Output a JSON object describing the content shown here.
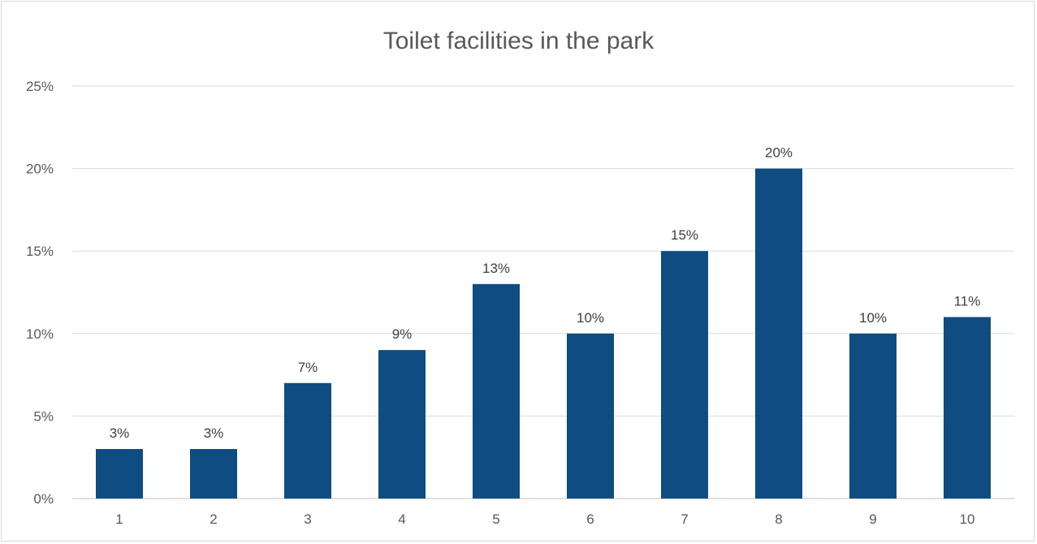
{
  "chart_data": {
    "type": "bar",
    "title": "Toilet facilities in the park",
    "xlabel": "",
    "ylabel": "",
    "categories": [
      "1",
      "2",
      "3",
      "4",
      "5",
      "6",
      "7",
      "8",
      "9",
      "10"
    ],
    "values": [
      3,
      3,
      7,
      9,
      13,
      10,
      15,
      20,
      10,
      11
    ],
    "data_labels": [
      "3%",
      "3%",
      "7%",
      "9%",
      "13%",
      "10%",
      "15%",
      "20%",
      "10%",
      "11%"
    ],
    "ylim": [
      0,
      25
    ],
    "yticks": [
      0,
      5,
      10,
      15,
      20,
      25
    ],
    "ytick_labels": [
      "0%",
      "5%",
      "10%",
      "15%",
      "20%",
      "25%"
    ],
    "grid": true,
    "legend": "none",
    "bar_color": "#0f4c81"
  }
}
